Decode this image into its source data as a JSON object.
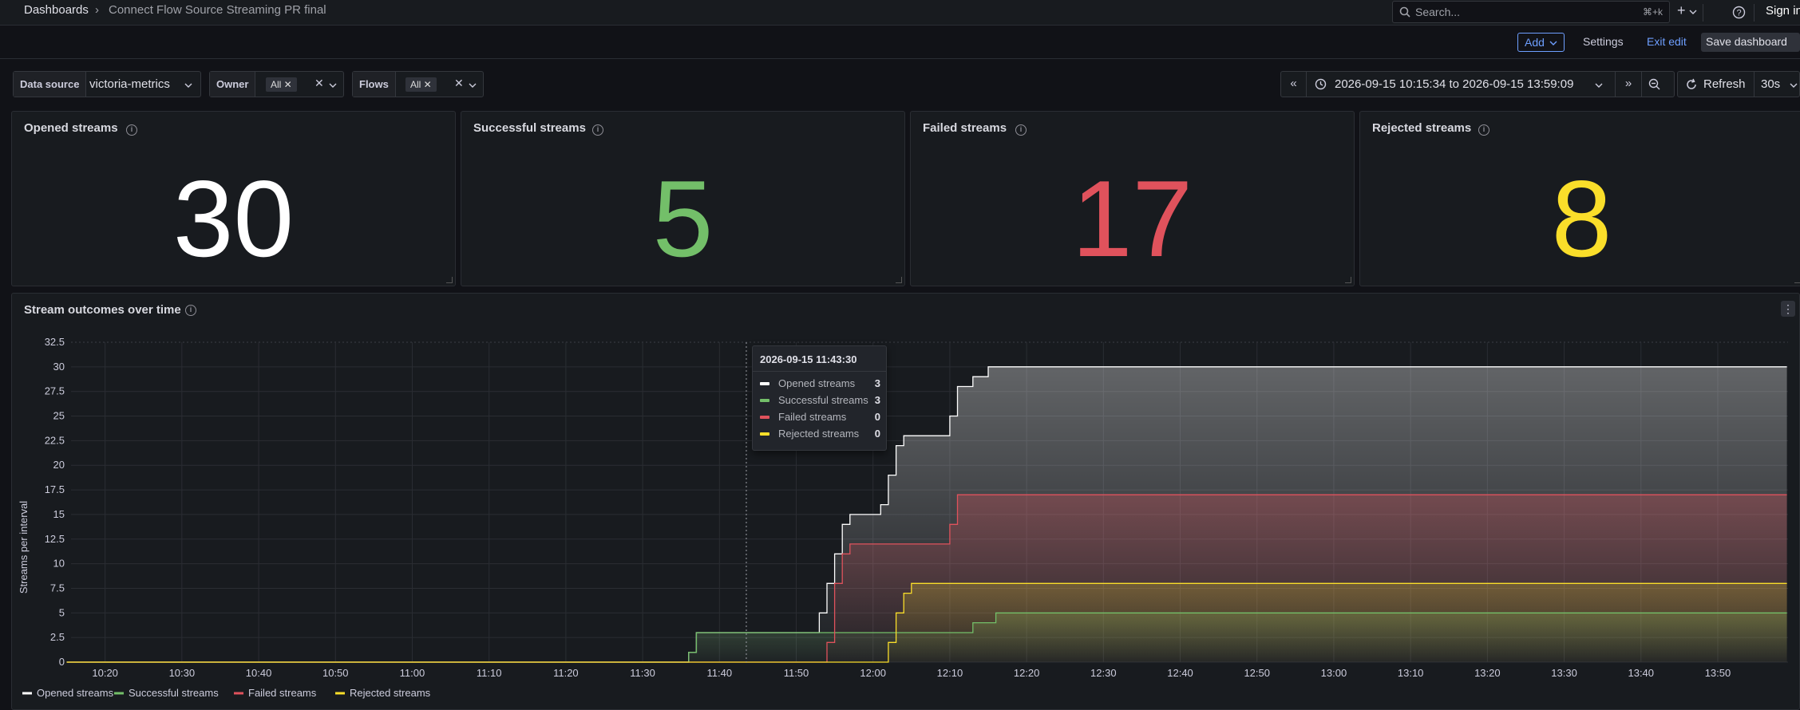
{
  "breadcrumb": {
    "root": "Dashboards",
    "separator": "›",
    "current": "Connect Flow Source Streaming PR final"
  },
  "search": {
    "placeholder": "Search...",
    "shortcut": "⌘+k"
  },
  "topbar": {
    "plus": "+",
    "sign_in": "Sign in"
  },
  "toolbar": {
    "add": "Add",
    "settings": "Settings",
    "exit_edit": "Exit edit",
    "save": "Save dashboard"
  },
  "variables": {
    "datasource": {
      "label": "Data source",
      "value": "victoria-metrics"
    },
    "owner": {
      "label": "Owner",
      "chip": "All"
    },
    "flows": {
      "label": "Flows",
      "chip": "All"
    }
  },
  "timepicker": {
    "range": "2026-09-15 10:15:34 to 2026-09-15 13:59:09",
    "refresh": "Refresh",
    "interval": "30s"
  },
  "stats": [
    {
      "title": "Opened streams",
      "value": "30",
      "color": "#ffffff"
    },
    {
      "title": "Successful streams",
      "value": "5",
      "color": "#73bf69"
    },
    {
      "title": "Failed streams",
      "value": "17",
      "color": "#e0525c"
    },
    {
      "title": "Rejected streams",
      "value": "8",
      "color": "#fade2a"
    }
  ],
  "timeseries": {
    "title": "Stream outcomes over time"
  },
  "tooltip": {
    "time": "2026-09-15 11:43:30",
    "rows": [
      {
        "name": "Opened streams",
        "value": "3"
      },
      {
        "name": "Successful streams",
        "value": "3"
      },
      {
        "name": "Failed streams",
        "value": "0"
      },
      {
        "name": "Rejected streams",
        "value": "0"
      }
    ]
  },
  "chart_data": {
    "type": "line",
    "ylabel": "Streams per interval",
    "ylim": [
      0,
      32.5
    ],
    "yticks": [
      "0",
      "2.5",
      "5",
      "7.5",
      "10",
      "12.5",
      "15",
      "17.5",
      "20",
      "22.5",
      "25",
      "27.5",
      "30",
      "32.5"
    ],
    "xticks": [
      "10:20",
      "10:30",
      "10:40",
      "10:50",
      "11:00",
      "11:10",
      "11:20",
      "11:30",
      "11:40",
      "11:50",
      "12:00",
      "12:10",
      "12:20",
      "12:30",
      "12:40",
      "12:50",
      "13:00",
      "13:10",
      "13:20",
      "13:30",
      "13:40",
      "13:50"
    ],
    "xrange": [
      "10:15:34",
      "13:59:09"
    ],
    "legend_placement": "bottom",
    "grid": true,
    "series": [
      {
        "name": "Opened streams",
        "color": "#ffffff",
        "points": [
          [
            "10:15",
            0
          ],
          [
            "11:36",
            0
          ],
          [
            "11:36",
            1
          ],
          [
            "11:37",
            1
          ],
          [
            "11:37",
            3
          ],
          [
            "11:53",
            3
          ],
          [
            "11:53",
            5
          ],
          [
            "11:54",
            5
          ],
          [
            "11:54",
            8
          ],
          [
            "11:55",
            8
          ],
          [
            "11:55",
            11
          ],
          [
            "11:56",
            11
          ],
          [
            "11:56",
            14
          ],
          [
            "11:57",
            14
          ],
          [
            "11:57",
            15
          ],
          [
            "12:01",
            15
          ],
          [
            "12:01",
            16
          ],
          [
            "12:02",
            16
          ],
          [
            "12:02",
            19
          ],
          [
            "12:03",
            19
          ],
          [
            "12:03",
            22
          ],
          [
            "12:04",
            22
          ],
          [
            "12:04",
            23
          ],
          [
            "12:10",
            23
          ],
          [
            "12:10",
            25
          ],
          [
            "12:11",
            25
          ],
          [
            "12:11",
            28
          ],
          [
            "12:13",
            28
          ],
          [
            "12:13",
            29
          ],
          [
            "12:15",
            29
          ],
          [
            "12:15",
            30
          ],
          [
            "13:59",
            30
          ]
        ]
      },
      {
        "name": "Successful streams",
        "color": "#73bf69",
        "points": [
          [
            "10:15",
            0
          ],
          [
            "11:36",
            0
          ],
          [
            "11:36",
            1
          ],
          [
            "11:37",
            1
          ],
          [
            "11:37",
            3
          ],
          [
            "12:13",
            3
          ],
          [
            "12:13",
            4
          ],
          [
            "12:16",
            4
          ],
          [
            "12:16",
            5
          ],
          [
            "13:59",
            5
          ]
        ]
      },
      {
        "name": "Failed streams",
        "color": "#e0525c",
        "points": [
          [
            "10:15",
            0
          ],
          [
            "11:54",
            0
          ],
          [
            "11:54",
            2
          ],
          [
            "11:55",
            2
          ],
          [
            "11:55",
            8
          ],
          [
            "11:56",
            8
          ],
          [
            "11:56",
            11
          ],
          [
            "11:57",
            11
          ],
          [
            "11:57",
            12
          ],
          [
            "12:10",
            12
          ],
          [
            "12:10",
            14
          ],
          [
            "12:11",
            14
          ],
          [
            "12:11",
            17
          ],
          [
            "13:59",
            17
          ]
        ]
      },
      {
        "name": "Rejected streams",
        "color": "#fade2a",
        "points": [
          [
            "10:15",
            0
          ],
          [
            "12:02",
            0
          ],
          [
            "12:02",
            2
          ],
          [
            "12:03",
            2
          ],
          [
            "12:03",
            5
          ],
          [
            "12:04",
            5
          ],
          [
            "12:04",
            7
          ],
          [
            "12:05",
            7
          ],
          [
            "12:05",
            8
          ],
          [
            "13:59",
            8
          ]
        ]
      }
    ]
  }
}
